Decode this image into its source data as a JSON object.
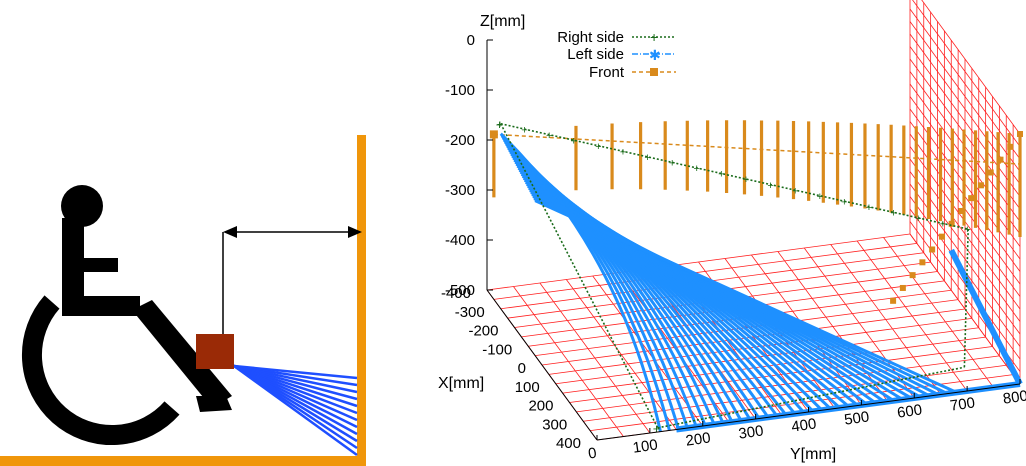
{
  "colors": {
    "wall": "#f0960a",
    "sensor": "#9a2a06",
    "beam": "#1f4fff",
    "figure": "#000000",
    "grid": "#ff2020",
    "right_side": "#1a6b1a",
    "left_side": "#1e90ff",
    "front": "#d98a1c"
  },
  "icons": {
    "wheelchair": "wheelchair-user-icon",
    "sensor": "sensor-box-icon",
    "distance": "double-arrow-icon"
  },
  "chart_data": {
    "type": "scatter3d",
    "title": "",
    "axes": {
      "x": {
        "label": "X[mm]",
        "ticks": [
          "-400",
          "-300",
          "-200",
          "-100",
          "0",
          "100",
          "200",
          "300",
          "400"
        ],
        "range": [
          -400,
          400
        ]
      },
      "y": {
        "label": "Y[mm]",
        "ticks": [
          "0",
          "100",
          "200",
          "300",
          "400",
          "500",
          "600",
          "700",
          "800"
        ],
        "range": [
          0,
          800
        ]
      },
      "z": {
        "label": "Z[mm]",
        "ticks": [
          "0",
          "-100",
          "-200",
          "-300",
          "-400",
          "-500"
        ],
        "range": [
          -500,
          0
        ]
      }
    },
    "grid": true,
    "legend": {
      "placement": "top-left",
      "entries": [
        "Right side",
        "Left side",
        "Front"
      ]
    },
    "series": [
      {
        "name": "Right side",
        "marker": "+",
        "style": "dotted",
        "description_points": [
          [
            -300,
            0,
            -130
          ],
          [
            300,
            700,
            -420
          ]
        ]
      },
      {
        "name": "Left side",
        "marker": "*",
        "style": "dash-dot",
        "description_points": [
          [
            400,
            150,
            -500
          ],
          [
            -200,
            800,
            -500
          ]
        ]
      },
      {
        "name": "Front",
        "marker": "square",
        "style": "dashed",
        "description_points": [
          [
            -350,
            0,
            -170
          ],
          [
            400,
            800,
            0
          ]
        ]
      }
    ]
  }
}
